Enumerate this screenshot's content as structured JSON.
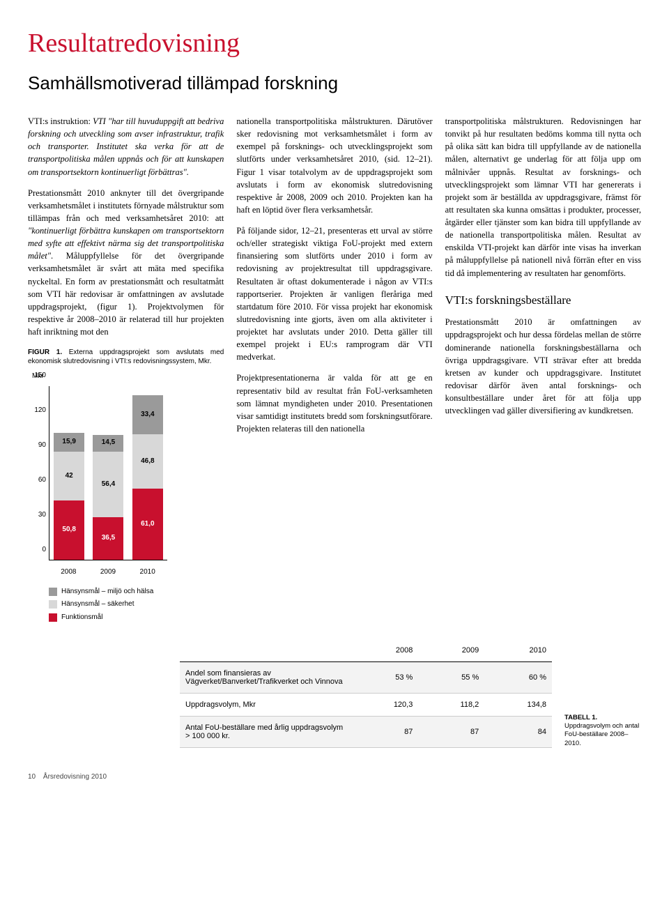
{
  "title": "Resultatredovisning",
  "subtitle": "Samhällsmotiverad tillämpad forskning",
  "col1": {
    "p1a": "VTI:s instruktion: ",
    "p1b": "VTI \"har till huvuduppgift att bedriva forskning och utveckling som avser infrastruktur, trafik och transporter. Institutet ska verka för att de transportpolitiska målen uppnås och för att kunskapen om transportsektorn kontinuerligt förbättras\".",
    "p2a": "Prestationsmått 2010 anknyter till det övergripande verksamhetsmålet i institutets förnyade målstruktur som tillämpas från och med verksamhetsåret 2010: att ",
    "p2b": "\"kontinuerligt förbättra kunskapen om transportsektorn med syfte att effektivt närma sig det transportpolitiska målet\"",
    "p2c": ". Måluppfyllelse för det övergripande verksamhetsmålet är svårt att mäta med specifika nyckeltal. En form av prestationsmått och resultatmått som VTI här redovisar är omfattningen av avslutade uppdragsprojekt, (figur 1). Projektvolymen för respektive år 2008–2010 är relaterad till hur projekten haft inriktning mot den"
  },
  "col2": {
    "p1": "nationella transportpolitiska målstrukturen. Därutöver sker redovisning mot verksamhetsmålet i form av exempel på forsknings- och utvecklingsprojekt som slutförts under verksamhetsåret 2010, (sid. 12–21). Figur 1 visar totalvolym av de uppdragsprojekt som avslutats i form av ekonomisk slutredovisning respektive år 2008, 2009 och 2010. Projekten kan ha haft en löptid över flera verksamhetsår.",
    "p2": "På följande sidor, 12–21, presenteras ett urval av större och/eller strategiskt viktiga FoU-projekt med extern finansiering som slutförts under 2010 i form av redovisning av projektresultat till uppdragsgivare. Resultaten är oftast dokumenterade i någon av VTI:s rapportserier. Projekten är vanligen fleråriga med startdatum före 2010. För vissa projekt har ekonomisk slutredovisning inte gjorts, även om alla aktiviteter i projektet har avslutats under 2010. Detta gäller till exempel projekt i EU:s ramprogram där VTI medverkat.",
    "p3": "Projektpresentationerna är valda för att ge en representativ bild av resultat från FoU-verksamheten som lämnat myndigheten under 2010. Presentationen visar samtidigt institutets bredd som forskningsutförare. Projekten relateras till den nationella"
  },
  "col3": {
    "p1": "transportpolitiska målstrukturen. Redovisningen har tonvikt på hur resultaten bedöms komma till nytta och på olika sätt kan bidra till uppfyllande av de nationella målen, alternativt ge underlag för att följa upp om målnivåer uppnås. Resultat av forsknings- och utvecklingsprojekt som lämnar VTI har genererats i projekt som är beställda av uppdragsgivare, främst för att resultaten ska kunna omsättas i produkter, processer, åtgärder eller tjänster som kan bidra till uppfyllande av de nationella transportpolitiska målen. Resultat av enskilda VTI-projekt kan därför inte visas ha inverkan på måluppfyllelse på nationell nivå förrän efter en viss tid då implementering av resultaten har genomförts.",
    "h3": "VTI:s forskningsbeställare",
    "p2": "Prestationsmått 2010 är omfattningen av uppdragsprojekt och hur dessa fördelas mellan de större dominerande nationella forskningsbeställarna och övriga uppdragsgivare. VTI strävar efter att bredda kretsen av kunder och uppdragsgivare. Institutet redovisar därför även antal forsknings- och konsultbeställare under året för att följa upp utvecklingen vad gäller diversifiering av kundkretsen."
  },
  "figure": {
    "caption_prefix": "FIGUR 1. ",
    "caption": "Externa uppdragsprojekt som avslutats med ekonomisk slutredovisning i VTI:s redovisningssystem, Mkr.",
    "unit": "Mkr",
    "ymax": 150,
    "yticks": [
      0,
      30,
      60,
      90,
      120,
      150
    ],
    "xlabels": [
      "2008",
      "2009",
      "2010"
    ],
    "series": [
      {
        "name": "Funktionsmål",
        "color": "#c8102e",
        "text": "#ffffff"
      },
      {
        "name": "Hänsynsmål – säkerhet",
        "color": "#d8d8d8",
        "text": "#000000"
      },
      {
        "name": "Hänsynsmål – miljö och hälsa",
        "color": "#9a9a9a",
        "text": "#000000"
      }
    ],
    "stacks": [
      [
        50.8,
        42,
        15.9
      ],
      [
        36.5,
        56.4,
        14.5
      ],
      [
        61.0,
        46.8,
        33.4
      ]
    ],
    "labels": [
      [
        "50,8",
        "42",
        "15,9"
      ],
      [
        "36,5",
        "56,4",
        "14,5"
      ],
      [
        "61,0",
        "46,8",
        "33,4"
      ]
    ],
    "legend": [
      {
        "label": "Hänsynsmål – miljö och hälsa",
        "color": "#9a9a9a"
      },
      {
        "label": "Hänsynsmål – säkerhet",
        "color": "#d8d8d8"
      },
      {
        "label": "Funktionsmål",
        "color": "#c8102e"
      }
    ]
  },
  "table": {
    "headers": [
      "",
      "2008",
      "2009",
      "2010"
    ],
    "rows": [
      [
        "Andel som finansieras av Vägverket/Banverket/Trafikverket och Vinnova",
        "53 %",
        "55 %",
        "60 %"
      ],
      [
        "Uppdragsvolym, Mkr",
        "120,3",
        "118,2",
        "134,8"
      ],
      [
        "Antal FoU-beställare med årlig uppdragsvolym > 100 000 kr.",
        "87",
        "87",
        "84"
      ]
    ],
    "caption_prefix": "TABELL 1. ",
    "caption": "Uppdragsvolym och antal FoU-beställare 2008–2010."
  },
  "footer": {
    "page": "10",
    "doc": "Årsredovisning 2010"
  }
}
